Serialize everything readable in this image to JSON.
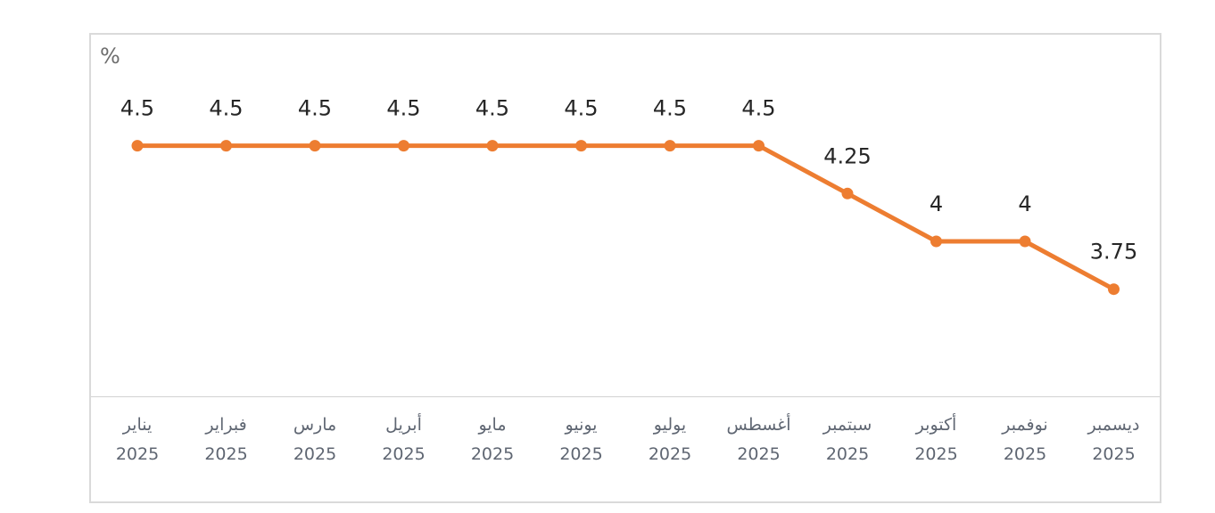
{
  "chart_data": {
    "type": "line",
    "title": "",
    "ylabel": "%",
    "categories": [
      {
        "month": "يناير",
        "year": "2025"
      },
      {
        "month": "فبراير",
        "year": "2025"
      },
      {
        "month": "مارس",
        "year": "2025"
      },
      {
        "month": "أبريل",
        "year": "2025"
      },
      {
        "month": "مايو",
        "year": "2025"
      },
      {
        "month": "يونيو",
        "year": "2025"
      },
      {
        "month": "يوليو",
        "year": "2025"
      },
      {
        "month": "أغسطس",
        "year": "2025"
      },
      {
        "month": "سبتمبر",
        "year": "2025"
      },
      {
        "month": "أكتوبر",
        "year": "2025"
      },
      {
        "month": "نوفمبر",
        "year": "2025"
      },
      {
        "month": "ديسمبر",
        "year": "2025"
      }
    ],
    "values": [
      4.5,
      4.5,
      4.5,
      4.5,
      4.5,
      4.5,
      4.5,
      4.5,
      4.25,
      4,
      4,
      3.75
    ],
    "point_labels": [
      "4.5",
      "4.5",
      "4.5",
      "4.5",
      "4.5",
      "4.5",
      "4.5",
      "4.5",
      "4.25",
      "4",
      "4",
      "3.75"
    ],
    "ylim": [
      3.19,
      5.08
    ],
    "grid": false,
    "legend": "none",
    "line_color": "#ED7D31",
    "marker_color": "#ED7D31",
    "data_label_color": "#262626",
    "axis_label_color": "#5F6672",
    "unit_label_color": "#6D6D6D"
  }
}
